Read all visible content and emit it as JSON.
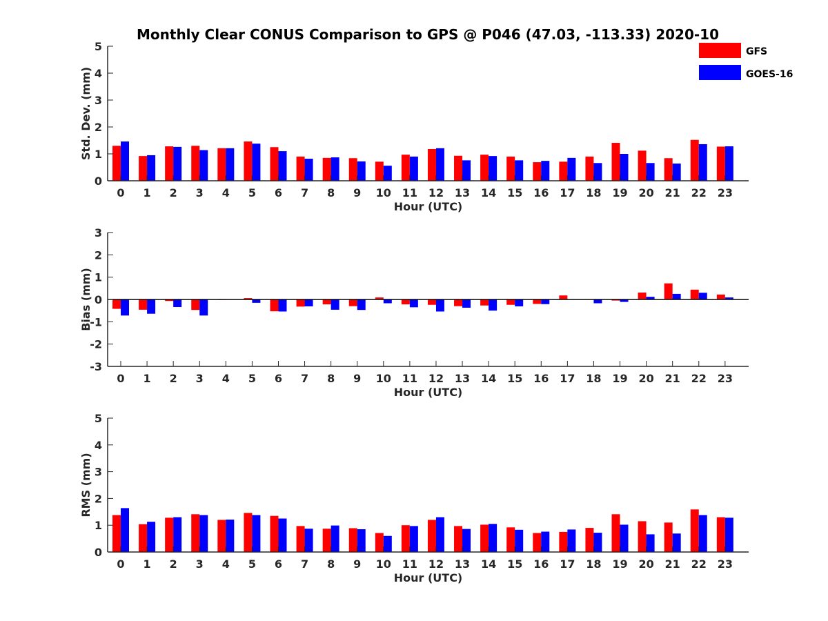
{
  "title": "Monthly Clear CONUS Comparison to GPS @ P046 (47.03, -113.33) 2020-10",
  "legend": [
    {
      "label": "GFS",
      "color": "#ff0000"
    },
    {
      "label": "GOES-16",
      "color": "#0000ff"
    }
  ],
  "chart_data": [
    {
      "type": "bar",
      "ylabel": "Std. Dev. (mm)",
      "xlabel": "Hour (UTC)",
      "ylim": [
        0,
        5
      ],
      "yticks": [
        0,
        1,
        2,
        3,
        4,
        5
      ],
      "categories": [
        "0",
        "1",
        "2",
        "3",
        "4",
        "5",
        "6",
        "7",
        "8",
        "9",
        "10",
        "11",
        "12",
        "13",
        "14",
        "15",
        "16",
        "17",
        "18",
        "19",
        "20",
        "21",
        "22",
        "23"
      ],
      "series": [
        {
          "name": "GFS",
          "values": [
            1.3,
            0.92,
            1.28,
            1.3,
            1.21,
            1.46,
            1.25,
            0.9,
            0.85,
            0.84,
            0.71,
            0.97,
            1.18,
            0.93,
            0.97,
            0.9,
            0.69,
            0.71,
            0.9,
            1.41,
            1.12,
            0.84,
            1.52,
            1.27
          ]
        },
        {
          "name": "GOES-16",
          "values": [
            1.46,
            0.95,
            1.26,
            1.14,
            1.21,
            1.38,
            1.1,
            0.82,
            0.87,
            0.72,
            0.56,
            0.9,
            1.21,
            0.76,
            0.92,
            0.76,
            0.74,
            0.85,
            0.66,
            1.0,
            0.66,
            0.64,
            1.36,
            1.28
          ]
        }
      ]
    },
    {
      "type": "bar",
      "ylabel": "Bias (mm)",
      "xlabel": "Hour (UTC)",
      "ylim": [
        -3,
        3
      ],
      "yticks": [
        -3,
        -2,
        -1,
        0,
        1,
        2,
        3
      ],
      "categories": [
        "0",
        "1",
        "2",
        "3",
        "4",
        "5",
        "6",
        "7",
        "8",
        "9",
        "10",
        "11",
        "12",
        "13",
        "14",
        "15",
        "16",
        "17",
        "18",
        "19",
        "20",
        "21",
        "22",
        "23"
      ],
      "series": [
        {
          "name": "GFS",
          "values": [
            -0.42,
            -0.46,
            -0.07,
            -0.47,
            0.02,
            0.06,
            -0.53,
            -0.32,
            -0.22,
            -0.3,
            0.09,
            -0.22,
            -0.24,
            -0.3,
            -0.27,
            -0.24,
            -0.2,
            0.18,
            0.0,
            -0.05,
            0.31,
            0.72,
            0.44,
            0.22
          ]
        },
        {
          "name": "GOES-16",
          "values": [
            -0.72,
            -0.64,
            -0.34,
            -0.72,
            0.0,
            -0.15,
            -0.54,
            -0.31,
            -0.46,
            -0.47,
            -0.17,
            -0.35,
            -0.54,
            -0.37,
            -0.5,
            -0.31,
            -0.21,
            0.0,
            -0.17,
            -0.11,
            0.12,
            0.25,
            0.3,
            0.09
          ]
        }
      ]
    },
    {
      "type": "bar",
      "ylabel": "RMS (mm)",
      "xlabel": "Hour (UTC)",
      "ylim": [
        0,
        5
      ],
      "yticks": [
        0,
        1,
        2,
        3,
        4,
        5
      ],
      "categories": [
        "0",
        "1",
        "2",
        "3",
        "4",
        "5",
        "6",
        "7",
        "8",
        "9",
        "10",
        "11",
        "12",
        "13",
        "14",
        "15",
        "16",
        "17",
        "18",
        "19",
        "20",
        "21",
        "22",
        "23"
      ],
      "series": [
        {
          "name": "GFS",
          "values": [
            1.38,
            1.04,
            1.28,
            1.41,
            1.2,
            1.46,
            1.35,
            0.97,
            0.87,
            0.89,
            0.71,
            1.0,
            1.2,
            0.97,
            1.02,
            0.92,
            0.71,
            0.75,
            0.9,
            1.41,
            1.15,
            1.1,
            1.59,
            1.3
          ]
        },
        {
          "name": "GOES-16",
          "values": [
            1.64,
            1.13,
            1.3,
            1.38,
            1.21,
            1.38,
            1.25,
            0.87,
            0.99,
            0.85,
            0.6,
            0.97,
            1.3,
            0.86,
            1.05,
            0.83,
            0.76,
            0.84,
            0.72,
            1.02,
            0.66,
            0.69,
            1.38,
            1.28
          ]
        }
      ]
    }
  ]
}
